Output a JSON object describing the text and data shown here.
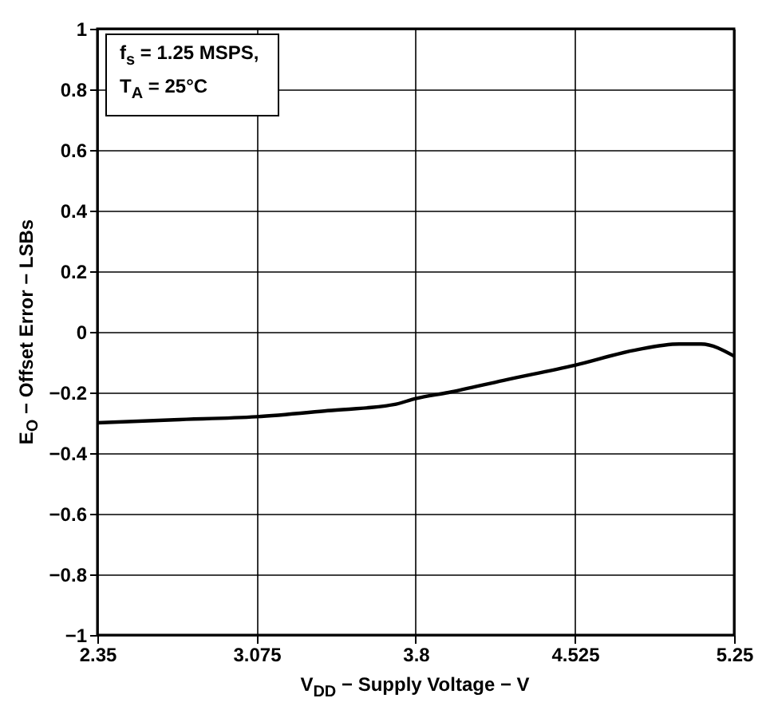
{
  "chart_data": {
    "type": "line",
    "xlabel": "V$_{DD}$ − Supply Voltage − V",
    "ylabel": "E$_{O}$ − Offset Error − LSBs",
    "annotations": [
      "f$_{s}$ = 1.25 MSPS,",
      "T$_{A}$ = 25°C"
    ],
    "x": [
      2.35,
      2.7,
      3.075,
      3.4,
      3.7,
      3.8,
      3.95,
      4.2,
      4.525,
      4.8,
      5.0,
      5.1,
      5.25
    ],
    "series": [
      {
        "color": "#000000",
        "values": [
          -0.3,
          -0.29,
          -0.28,
          -0.26,
          -0.24,
          -0.22,
          -0.2,
          -0.16,
          -0.11,
          -0.06,
          -0.04,
          -0.04,
          -0.08
        ]
      }
    ],
    "xlim": [
      2.35,
      5.25
    ],
    "xticks": [
      2.35,
      3.075,
      3.8,
      4.525,
      5.25
    ],
    "ylim": [
      -1,
      1
    ],
    "yticks": [
      -1,
      -0.8,
      -0.6,
      -0.4,
      -0.2,
      0,
      0.2,
      0.4,
      0.6,
      0.8,
      1
    ],
    "grid": true,
    "marker": "none",
    "line_style": "solid"
  }
}
